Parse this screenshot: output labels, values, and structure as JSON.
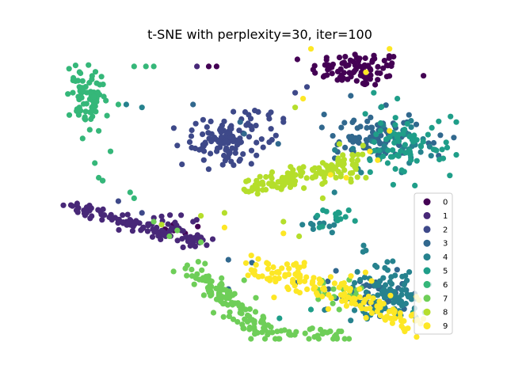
{
  "chart_data": {
    "type": "scatter",
    "title": "t-SNE with perplexity=30, iter=100",
    "xlabel": "",
    "ylabel": "",
    "axes_visible": false,
    "grid": false,
    "xlim": [
      0,
      100
    ],
    "ylim": [
      0,
      100
    ],
    "legend_position": "right",
    "series": [
      {
        "name": "0",
        "color": "#440154",
        "clusters": [
          {
            "cx": 75,
            "cy": 92,
            "sx": 6,
            "sy": 3,
            "n": 90
          },
          {
            "cx": 27,
            "cy": 38,
            "sx": 4,
            "sy": 1.5,
            "n": 6
          }
        ],
        "points": [
          [
            37,
            93
          ],
          [
            39,
            93
          ],
          [
            28,
            39
          ],
          [
            31,
            36
          ]
        ]
      },
      {
        "name": "1",
        "color": "#482878",
        "clusters": [
          {
            "line": [
              [
                1,
                46
              ],
              [
                35,
                33
              ]
            ],
            "spread": 1.3,
            "n": 110
          },
          {
            "cx": 28,
            "cy": 39,
            "sx": 6,
            "sy": 2,
            "n": 14
          }
        ],
        "points": [
          [
            34,
            93
          ],
          [
            30,
            37
          ],
          [
            33,
            40
          ]
        ]
      },
      {
        "name": "2",
        "color": "#3e4989",
        "clusters": [
          {
            "cx": 42,
            "cy": 68,
            "sx": 6,
            "sy": 4,
            "n": 90
          },
          {
            "line": [
              [
                33,
                64
              ],
              [
                51,
                78
              ]
            ],
            "spread": 1.6,
            "n": 25
          }
        ],
        "points": [
          [
            29,
            66
          ],
          [
            56,
            74
          ],
          [
            62,
            86
          ],
          [
            59,
            84
          ],
          [
            20,
            43
          ],
          [
            14,
            47
          ]
        ]
      },
      {
        "name": "3",
        "color": "#31688e",
        "clusters": [
          {
            "cx": 80,
            "cy": 69,
            "sx": 7,
            "sy": 4,
            "n": 100
          },
          {
            "cx": 79,
            "cy": 15,
            "sx": 7,
            "sy": 4,
            "n": 45
          }
        ],
        "points": [
          [
            33,
            80
          ],
          [
            46,
            70
          ],
          [
            45,
            74
          ],
          [
            42,
            27
          ],
          [
            48,
            26
          ],
          [
            42,
            17
          ]
        ]
      },
      {
        "name": "4",
        "color": "#26828e",
        "clusters": [
          {
            "cx": 81,
            "cy": 16,
            "sx": 6,
            "sy": 5,
            "n": 100
          },
          {
            "cx": 84,
            "cy": 67,
            "sx": 5,
            "sy": 4,
            "n": 35
          },
          {
            "cx": 66,
            "cy": 39,
            "sx": 3,
            "sy": 1.5,
            "n": 12
          }
        ],
        "points": [
          [
            16,
            80
          ],
          [
            20,
            79
          ],
          [
            10,
            54
          ],
          [
            75,
            58
          ],
          [
            69,
            50
          ]
        ]
      },
      {
        "name": "5",
        "color": "#1f9e89",
        "clusters": [
          {
            "cx": 86,
            "cy": 66,
            "sx": 5,
            "sy": 5,
            "n": 70
          },
          {
            "cx": 69,
            "cy": 41,
            "sx": 3,
            "sy": 2,
            "n": 14
          }
        ],
        "points": [
          [
            85,
            82
          ],
          [
            79,
            84
          ],
          [
            92,
            9
          ],
          [
            89,
            9
          ],
          [
            63,
            10
          ],
          [
            55,
            7
          ]
        ]
      },
      {
        "name": "6",
        "color": "#35b779",
        "clusters": [
          {
            "cx": 6,
            "cy": 83,
            "sx": 2.2,
            "sy": 5,
            "n": 75
          }
        ],
        "points": [
          [
            18,
            93
          ],
          [
            23,
            93
          ],
          [
            21,
            93
          ],
          [
            7,
            75
          ],
          [
            9,
            71
          ],
          [
            14,
            80
          ],
          [
            12,
            64
          ],
          [
            8,
            60
          ],
          [
            9,
            55
          ],
          [
            10,
            54
          ],
          [
            18,
            48
          ],
          [
            17,
            50
          ]
        ]
      },
      {
        "name": "7",
        "color": "#6ece58",
        "clusters": [
          {
            "line": [
              [
                32,
                25
              ],
              [
                52,
                1
              ]
            ],
            "spread": 2.2,
            "n": 120
          },
          {
            "line": [
              [
                52,
                2
              ],
              [
                72,
                1
              ]
            ],
            "spread": 1.3,
            "n": 35
          },
          {
            "cx": 69,
            "cy": 16,
            "sx": 5,
            "sy": 3,
            "n": 20
          }
        ],
        "points": [
          [
            23,
            40
          ],
          [
            35,
            33
          ],
          [
            27,
            35
          ],
          [
            29,
            37
          ],
          [
            49,
            14
          ],
          [
            46,
            20
          ]
        ]
      },
      {
        "name": "8",
        "color": "#b5de2b",
        "clusters": [
          {
            "line": [
              [
                47,
                52
              ],
              [
                73,
                59
              ]
            ],
            "spread": 1.6,
            "n": 110
          },
          {
            "cx": 72,
            "cy": 60,
            "sx": 3,
            "sy": 3,
            "n": 25
          }
        ],
        "points": [
          [
            59,
            79
          ],
          [
            41,
            43
          ],
          [
            46,
            51
          ],
          [
            35,
            42
          ],
          [
            25,
            39
          ],
          [
            56,
            40
          ],
          [
            60,
            35
          ],
          [
            66,
            48
          ],
          [
            77,
            55
          ]
        ]
      },
      {
        "name": "9",
        "color": "#fde725",
        "clusters": [
          {
            "line": [
              [
                48,
                26
              ],
              [
                90,
                6
              ]
            ],
            "spread": 2.3,
            "n": 130
          },
          {
            "cx": 63,
            "cy": 19,
            "sx": 6,
            "sy": 3.5,
            "n": 20
          }
        ],
        "points": [
          [
            63,
            99
          ],
          [
            77,
            91
          ],
          [
            61,
            82
          ],
          [
            83,
            99
          ],
          [
            80,
            61
          ],
          [
            83,
            71
          ],
          [
            68,
            56
          ],
          [
            72,
            55
          ],
          [
            78,
            64
          ],
          [
            41,
            38
          ],
          [
            56,
            36
          ]
        ]
      }
    ]
  }
}
